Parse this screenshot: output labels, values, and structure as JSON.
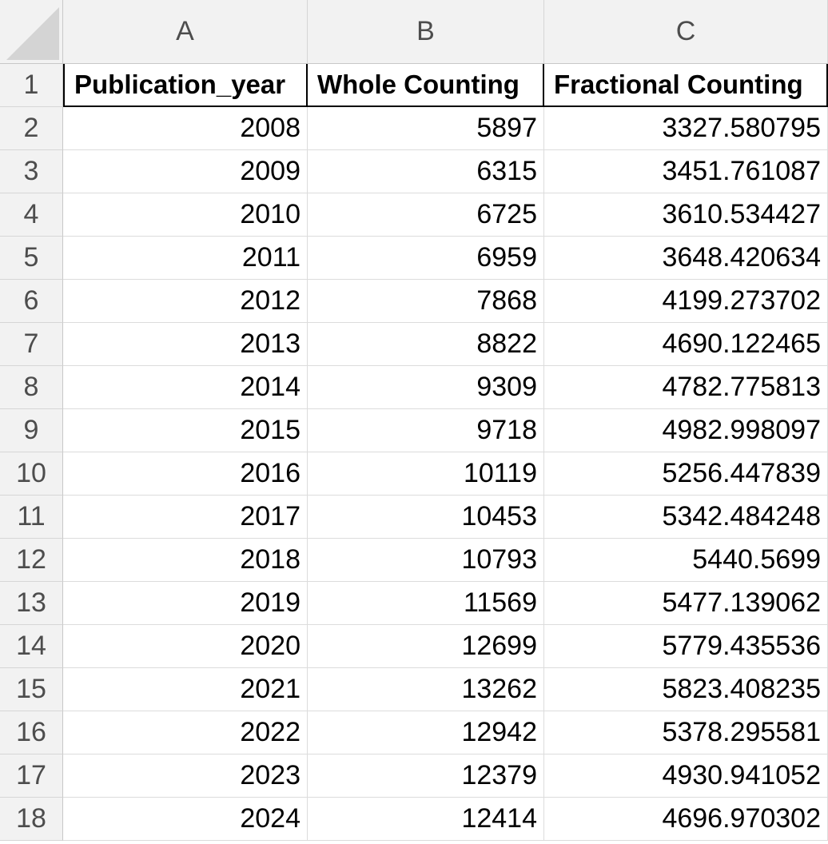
{
  "columns": [
    "A",
    "B",
    "C"
  ],
  "rows": [
    "1",
    "2",
    "3",
    "4",
    "5",
    "6",
    "7",
    "8",
    "9",
    "10",
    "11",
    "12",
    "13",
    "14",
    "15",
    "16",
    "17",
    "18"
  ],
  "headers": [
    "Publication_year",
    "Whole Counting",
    "Fractional Counting"
  ],
  "data": [
    [
      "2008",
      "5897",
      "3327.580795"
    ],
    [
      "2009",
      "6315",
      "3451.761087"
    ],
    [
      "2010",
      "6725",
      "3610.534427"
    ],
    [
      "2011",
      "6959",
      "3648.420634"
    ],
    [
      "2012",
      "7868",
      "4199.273702"
    ],
    [
      "2013",
      "8822",
      "4690.122465"
    ],
    [
      "2014",
      "9309",
      "4782.775813"
    ],
    [
      "2015",
      "9718",
      "4982.998097"
    ],
    [
      "2016",
      "10119",
      "5256.447839"
    ],
    [
      "2017",
      "10453",
      "5342.484248"
    ],
    [
      "2018",
      "10793",
      "5440.5699"
    ],
    [
      "2019",
      "11569",
      "5477.139062"
    ],
    [
      "2020",
      "12699",
      "5779.435536"
    ],
    [
      "2021",
      "13262",
      "5823.408235"
    ],
    [
      "2022",
      "12942",
      "5378.295581"
    ],
    [
      "2023",
      "12379",
      "4930.941052"
    ],
    [
      "2024",
      "12414",
      "4696.970302"
    ]
  ]
}
